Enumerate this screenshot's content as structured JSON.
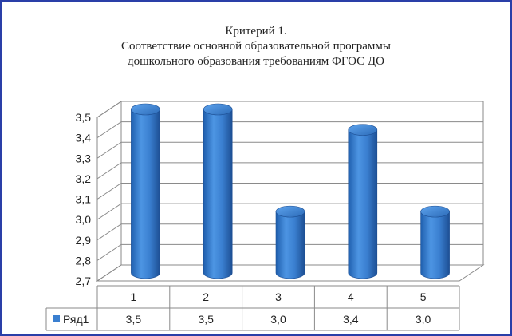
{
  "chart_data": {
    "type": "bar",
    "title_lines": [
      "Критерий 1.",
      "Соответствие основной образовательной программы",
      "дошкольного образования требованиям ФГОС ДО"
    ],
    "categories": [
      "1",
      "2",
      "3",
      "4",
      "5"
    ],
    "series": [
      {
        "name": "Ряд1",
        "values": [
          3.5,
          3.5,
          3.0,
          3.4,
          3.0
        ],
        "color": "#3a7fd0"
      }
    ],
    "value_labels": [
      "3,5",
      "3,5",
      "3,0",
      "3,4",
      "3,0"
    ],
    "ylim": [
      2.7,
      3.5
    ],
    "yticks": [
      "2,7",
      "2,8",
      "2,9",
      "3,0",
      "3,1",
      "3,2",
      "3,3",
      "3,4",
      "3,5"
    ],
    "grid": true,
    "legend_placement": "data-table-left",
    "data_table": true
  }
}
